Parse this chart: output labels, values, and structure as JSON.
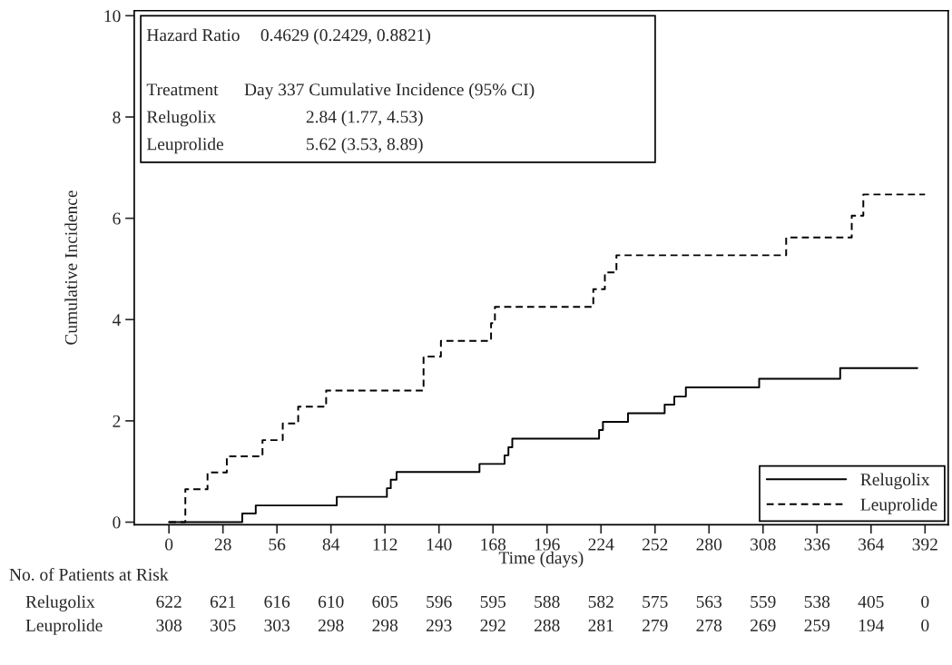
{
  "chart_data": {
    "type": "step",
    "xlabel": "Time (days)",
    "ylabel": "Cumulative Incidence",
    "xlim": [
      -18,
      404
    ],
    "ylim": [
      -0.05,
      10.1
    ],
    "xticks": [
      0,
      28,
      56,
      84,
      112,
      140,
      168,
      196,
      224,
      252,
      280,
      308,
      336,
      364,
      392
    ],
    "yticks": [
      0,
      2,
      4,
      6,
      8,
      10
    ],
    "grid": false,
    "legend": "bottom right",
    "series": [
      {
        "name": "Relugolix",
        "color": "#000000",
        "line_style": "solid",
        "x": [
          0,
          38,
          45,
          87,
          113,
          115,
          118,
          161,
          174,
          176,
          178,
          223,
          225,
          238,
          257,
          262,
          268,
          306,
          348,
          388
        ],
        "values": [
          0,
          0.17,
          0.33,
          0.5,
          0.67,
          0.84,
          0.99,
          1.15,
          1.32,
          1.48,
          1.65,
          1.82,
          1.98,
          2.15,
          2.32,
          2.48,
          2.66,
          2.83,
          3.04,
          3.04
        ]
      },
      {
        "name": "Leuprolide",
        "color": "#000000",
        "line_style": "dashed",
        "x": [
          0,
          8.5,
          20,
          30,
          48.5,
          59,
          67,
          81.5,
          132,
          141,
          167,
          169,
          220,
          226,
          232,
          320,
          354,
          360,
          392
        ],
        "values": [
          0,
          0.65,
          0.98,
          1.3,
          1.62,
          1.95,
          2.28,
          2.6,
          3.27,
          3.58,
          3.93,
          4.25,
          4.6,
          4.93,
          5.27,
          5.62,
          6.05,
          6.47,
          6.47
        ]
      }
    ],
    "annotations": [
      "Hazard Ratio",
      "0.4629 (0.2429, 0.8821)",
      "Treatment",
      "Day 337 Cumulative Incidence (95% CI)",
      "Relugolix",
      "2.84 (1.77, 4.53)",
      "Leuprolide",
      "5.62 (3.53, 8.89)",
      "No. of Patients at Risk",
      "Relugolix",
      "622",
      "621",
      "616",
      "610",
      "605",
      "596",
      "595",
      "588",
      "582",
      "575",
      "563",
      "559",
      "538",
      "405",
      "0",
      "Leuprolide",
      "308",
      "305",
      "303",
      "298",
      "298",
      "293",
      "292",
      "288",
      "281",
      "279",
      "278",
      "269",
      "259",
      "194",
      "0"
    ]
  }
}
